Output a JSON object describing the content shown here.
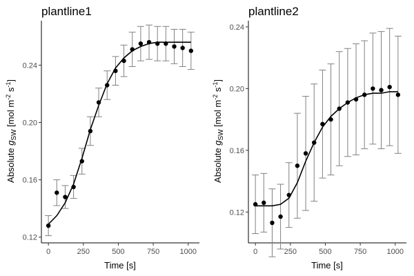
{
  "chart_data": [
    {
      "type": "scatter",
      "title": "plantline1",
      "xlabel": "Time [s]",
      "ylabel": "Absolute g_SW [mol m-2 s-1]",
      "xlim": [
        -50,
        1080
      ],
      "ylim": [
        0.116,
        0.271
      ],
      "xticks": [
        0,
        250,
        500,
        750,
        1000
      ],
      "yticks": [
        0.12,
        0.16,
        0.2,
        0.24
      ],
      "points": {
        "x": [
          0,
          60,
          120,
          180,
          240,
          300,
          360,
          420,
          480,
          540,
          600,
          660,
          720,
          780,
          840,
          900,
          960,
          1020
        ],
        "y": [
          0.128,
          0.151,
          0.148,
          0.155,
          0.173,
          0.194,
          0.214,
          0.226,
          0.236,
          0.243,
          0.251,
          0.255,
          0.256,
          0.255,
          0.255,
          0.253,
          0.252,
          0.25
        ],
        "err": [
          0.007,
          0.009,
          0.008,
          0.008,
          0.009,
          0.01,
          0.01,
          0.01,
          0.01,
          0.011,
          0.012,
          0.012,
          0.012,
          0.012,
          0.012,
          0.012,
          0.013,
          0.013
        ]
      },
      "fit": {
        "x": [
          0,
          60,
          120,
          180,
          240,
          300,
          360,
          420,
          480,
          540,
          600,
          660,
          720,
          780,
          840,
          900,
          960,
          1020
        ],
        "y": [
          0.129,
          0.135,
          0.144,
          0.157,
          0.175,
          0.195,
          0.212,
          0.227,
          0.238,
          0.245,
          0.25,
          0.253,
          0.255,
          0.256,
          0.256,
          0.256,
          0.256,
          0.256
        ]
      }
    },
    {
      "type": "scatter",
      "title": "plantline2",
      "xlabel": "Time [s]",
      "ylabel": "Absolute g_SW [mol m-2 s-1]",
      "xlim": [
        -50,
        1080
      ],
      "ylim": [
        0.1,
        0.244
      ],
      "xticks": [
        0,
        250,
        500,
        750,
        1000
      ],
      "yticks": [
        0.12,
        0.16,
        0.2,
        0.24
      ],
      "points": {
        "x": [
          0,
          60,
          120,
          180,
          240,
          300,
          360,
          420,
          480,
          540,
          600,
          660,
          720,
          780,
          840,
          900,
          960,
          1020
        ],
        "y": [
          0.125,
          0.126,
          0.113,
          0.117,
          0.131,
          0.15,
          0.158,
          0.165,
          0.177,
          0.18,
          0.187,
          0.191,
          0.193,
          0.196,
          0.2,
          0.199,
          0.201,
          0.196
        ],
        "err": [
          0.019,
          0.019,
          0.022,
          0.021,
          0.021,
          0.034,
          0.037,
          0.038,
          0.035,
          0.036,
          0.037,
          0.035,
          0.036,
          0.035,
          0.036,
          0.038,
          0.038,
          0.038
        ]
      },
      "fit": {
        "x": [
          0,
          60,
          120,
          180,
          240,
          300,
          360,
          420,
          480,
          540,
          600,
          660,
          720,
          780,
          840,
          900,
          960,
          1020
        ],
        "y": [
          0.124,
          0.124,
          0.124,
          0.125,
          0.129,
          0.139,
          0.153,
          0.165,
          0.175,
          0.182,
          0.187,
          0.191,
          0.194,
          0.196,
          0.197,
          0.197,
          0.198,
          0.198
        ]
      }
    }
  ]
}
